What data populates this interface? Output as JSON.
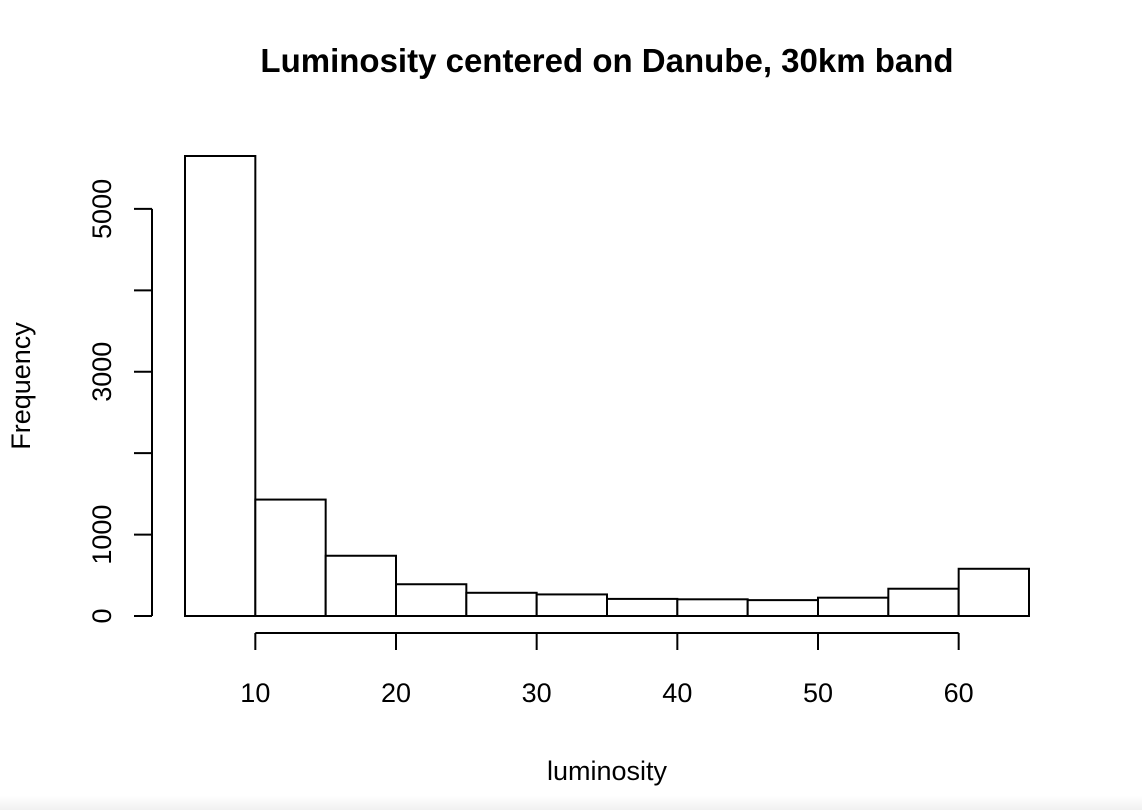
{
  "chart_data": {
    "type": "bar",
    "title": "Luminosity centered on Danube, 30km band",
    "xlabel": "luminosity",
    "ylabel": "Frequency",
    "bin_edges": [
      5,
      10,
      15,
      20,
      25,
      30,
      35,
      40,
      45,
      50,
      55,
      60,
      65
    ],
    "values": [
      5650,
      1430,
      740,
      390,
      285,
      265,
      210,
      205,
      195,
      225,
      335,
      580
    ],
    "xlim": [
      5,
      65
    ],
    "ylim": [
      0,
      5650
    ],
    "x_ticks": [
      10,
      20,
      30,
      40,
      50,
      60
    ],
    "x_tick_labels": [
      "10",
      "20",
      "30",
      "40",
      "50",
      "60"
    ],
    "y_ticks": [
      0,
      1000,
      2000,
      3000,
      4000,
      5000
    ],
    "y_tick_labels": [
      "0",
      "1000",
      "",
      "3000",
      "",
      "5000"
    ],
    "grid": false,
    "legend": "none",
    "bar_fill": "#ffffff",
    "bar_stroke": "#000000"
  }
}
